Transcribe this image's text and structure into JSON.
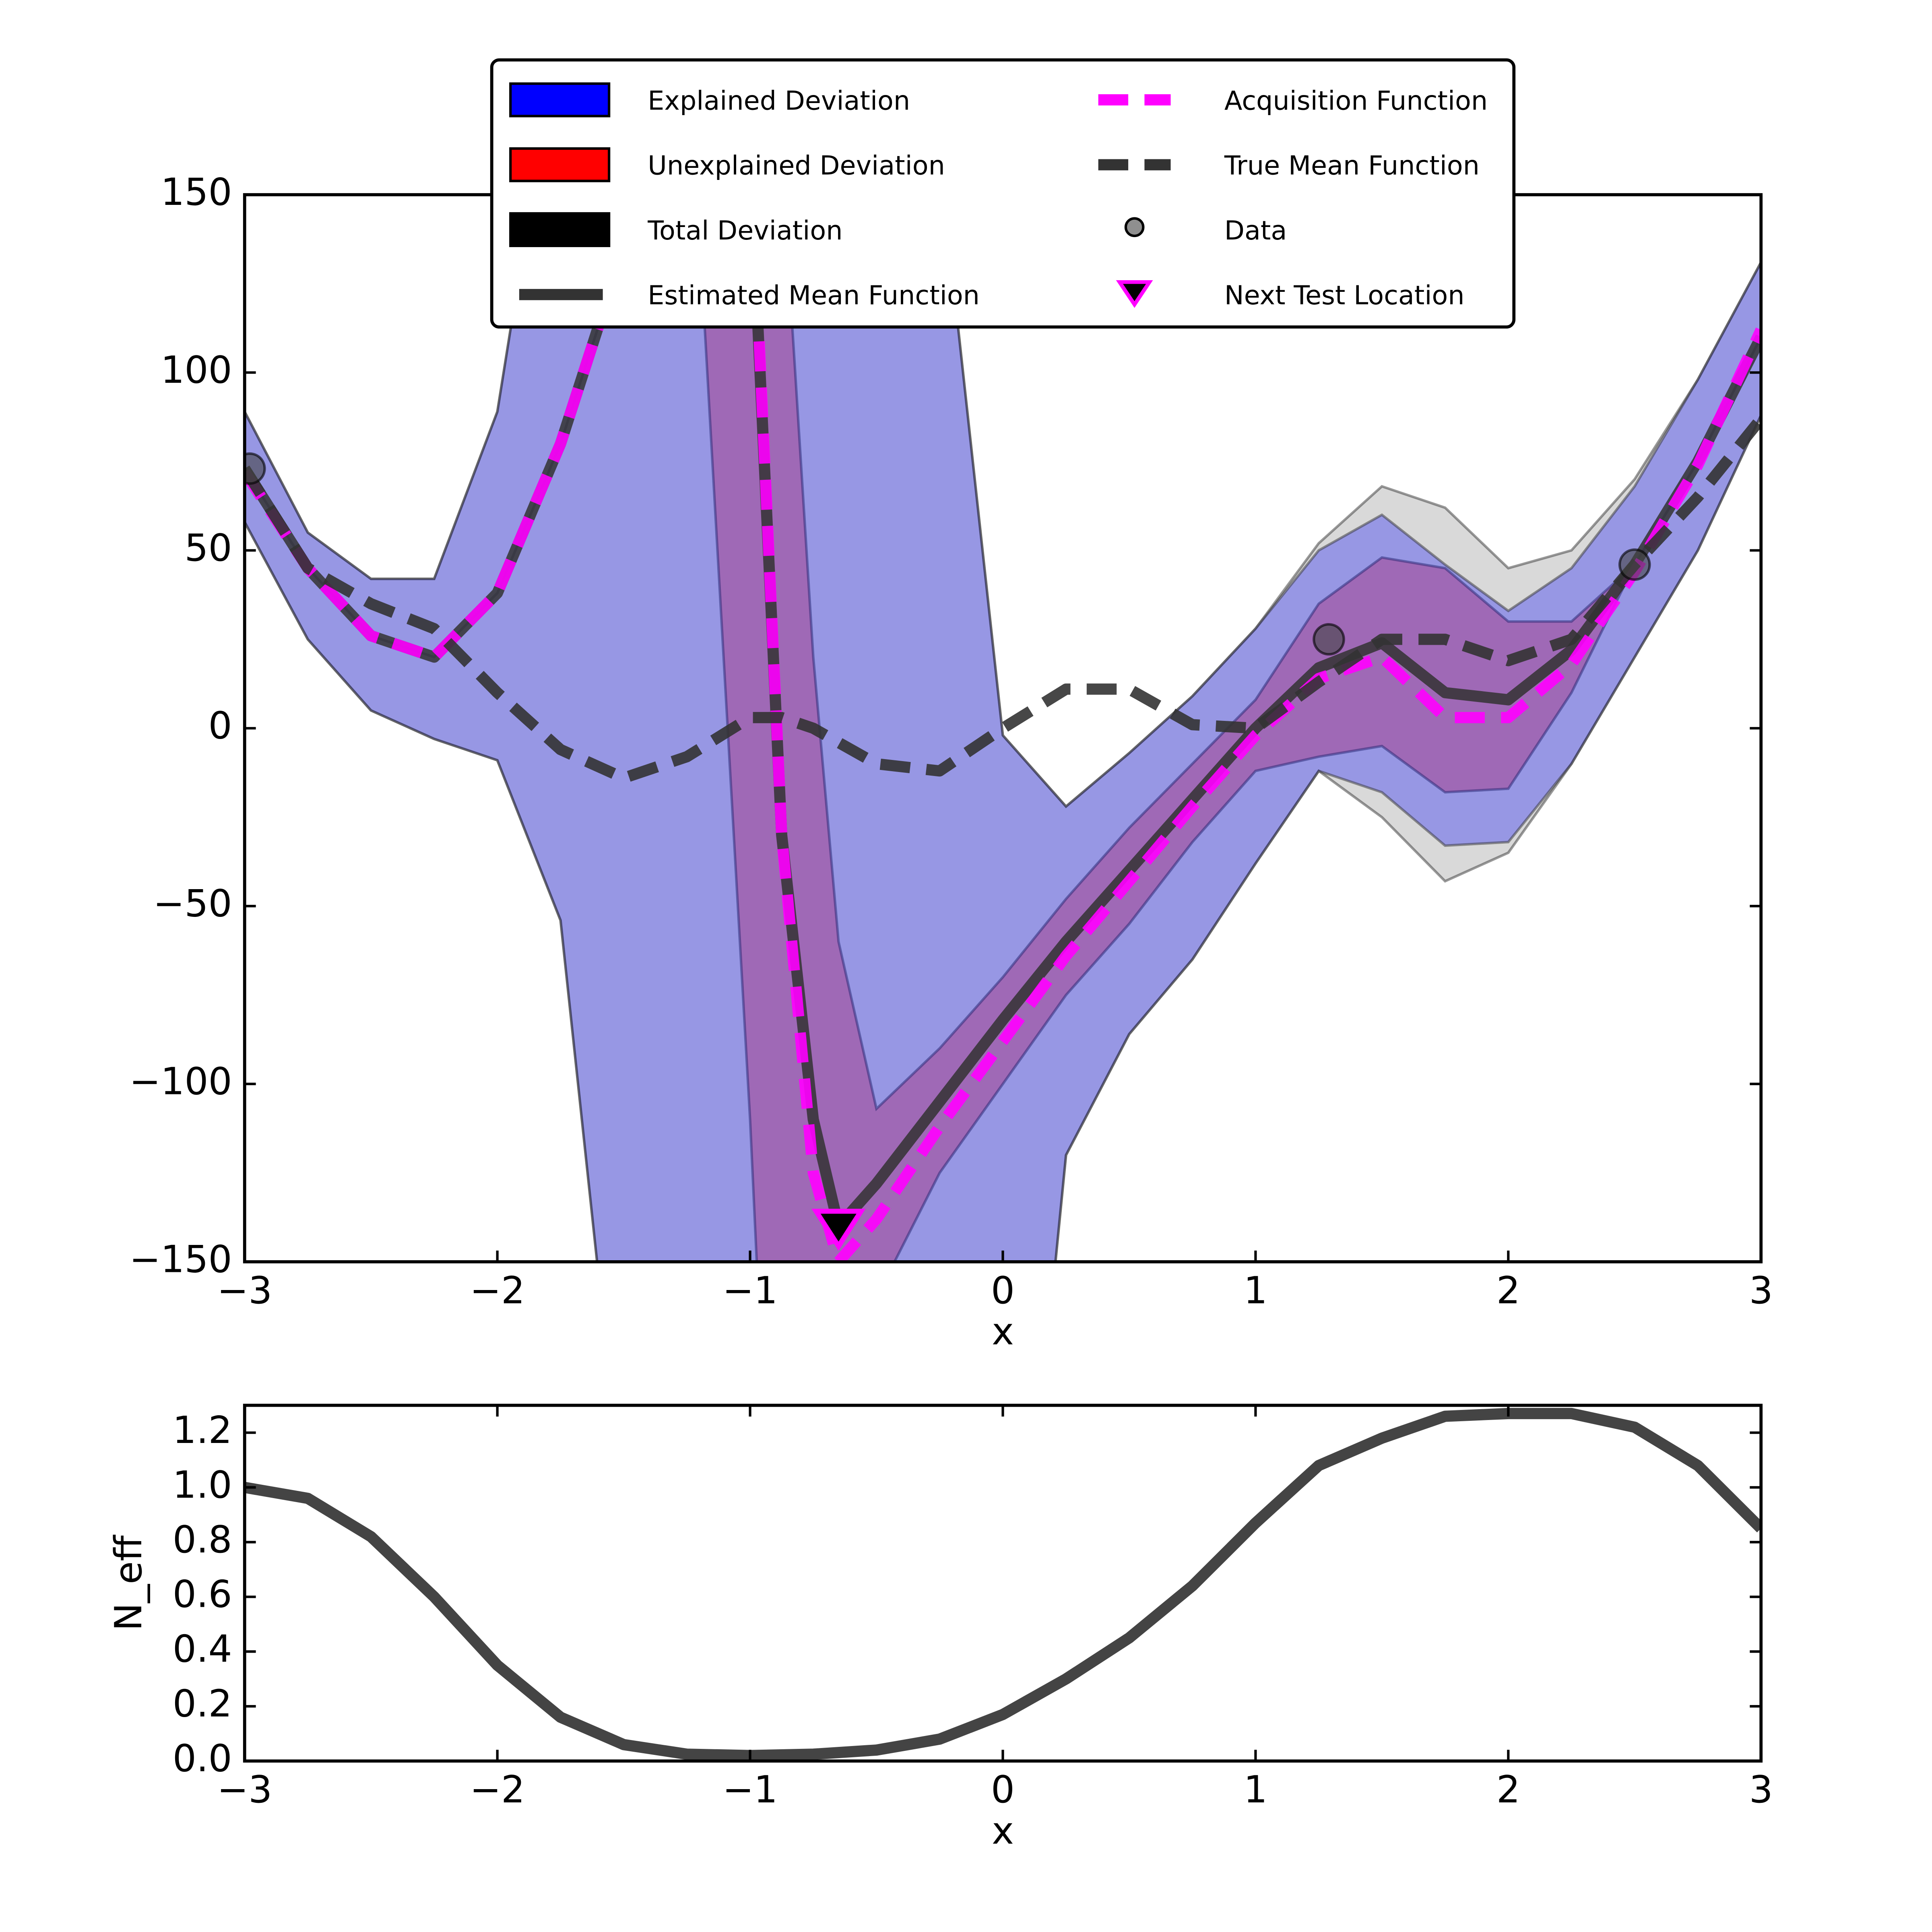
{
  "chart_data": [
    {
      "type": "line",
      "xlabel": "x",
      "x": [
        -3,
        -2.75,
        -2.5,
        -2.25,
        -2,
        -1.75,
        -1.5,
        -1.25,
        -1,
        -0.875,
        -0.75,
        -0.65,
        -0.5,
        -0.25,
        0,
        0.25,
        0.5,
        0.75,
        1,
        1.25,
        1.5,
        1.75,
        2,
        2.25,
        2.5,
        2.75,
        3
      ],
      "xlim": [
        -3,
        3
      ],
      "xticks": [
        {
          "value": -3,
          "label": "−3"
        },
        {
          "value": -2,
          "label": "−2"
        },
        {
          "value": -1,
          "label": "−1"
        },
        0,
        1,
        2,
        3
      ],
      "ylim": [
        -150,
        150
      ],
      "yticks": [
        {
          "value": -150,
          "label": "−150"
        },
        {
          "value": -100,
          "label": "−100"
        },
        {
          "value": -50,
          "label": "−50"
        },
        0,
        50,
        100,
        150
      ],
      "legend": "upper center",
      "bands": [
        {
          "name": "Explained Deviation",
          "color": "blue",
          "alpha": 0.3,
          "upper": [
            89,
            55,
            42,
            42,
            89,
            200,
            260,
            300,
            300,
            300,
            300,
            300,
            300,
            160,
            -2,
            -22,
            -7,
            9,
            28,
            50,
            60,
            46,
            33,
            45,
            68,
            98,
            131
          ],
          "lower": [
            58,
            25,
            5,
            -3,
            -9,
            -54,
            -220,
            -300,
            -300,
            -300,
            -300,
            -300,
            -300,
            -300,
            -300,
            -120,
            -86,
            -65,
            -38,
            -12,
            -18,
            -33,
            -32,
            -10,
            20,
            50,
            88
          ]
        },
        {
          "name": "Unexplained Deviation",
          "color": "red",
          "alpha": 0.3,
          "upper": [
            73,
            45,
            26,
            20,
            38,
            80,
            135,
            300,
            300,
            160,
            20,
            -60,
            -107,
            -90,
            -70,
            -48,
            -28,
            -10,
            8,
            35,
            48,
            45,
            30,
            30,
            46,
            75,
            110
          ],
          "lower": [
            73,
            45,
            26,
            20,
            38,
            80,
            135,
            200,
            -110,
            -300,
            -300,
            -300,
            -160,
            -125,
            -100,
            -75,
            -55,
            -32,
            -12,
            -8,
            -5,
            -18,
            -17,
            10,
            46,
            75,
            110
          ]
        },
        {
          "name": "Total Deviation",
          "color": "black",
          "alpha": 0.15,
          "upper": [
            89,
            55,
            42,
            42,
            89,
            200,
            260,
            300,
            300,
            300,
            300,
            300,
            300,
            160,
            -2,
            -22,
            -7,
            9,
            28,
            52,
            68,
            62,
            45,
            50,
            70,
            98,
            131
          ],
          "lower": [
            58,
            25,
            5,
            -3,
            -9,
            -54,
            -220,
            -300,
            -300,
            -300,
            -300,
            -300,
            -300,
            -300,
            -300,
            -120,
            -86,
            -65,
            -38,
            -12,
            -25,
            -43,
            -35,
            -10,
            20,
            50,
            88
          ]
        }
      ],
      "series": [
        {
          "name": "Estimated Mean Function",
          "color": "#333333",
          "dashed": false,
          "values": [
            73,
            45,
            26,
            20,
            38,
            80,
            135,
            190,
            160,
            -30,
            -110,
            -140,
            -128,
            -105,
            -82,
            -60,
            -40,
            -20,
            0,
            17,
            24,
            10,
            8,
            22,
            46,
            75,
            110
          ]
        },
        {
          "name": "Acquisition Function",
          "color": "magenta",
          "dashed": true,
          "values": [
            72,
            45,
            26,
            20,
            38,
            80,
            135,
            190,
            165,
            -30,
            -125,
            -150,
            -138,
            -112,
            -88,
            -64,
            -43,
            -22,
            -2,
            14,
            20,
            3,
            3,
            18,
            44,
            74,
            112
          ]
        },
        {
          "name": "True Mean Function",
          "color": "#333333",
          "dashed": true,
          "values": [
            73,
            45,
            35,
            28,
            10,
            -6,
            -14,
            -8,
            3,
            3,
            0,
            -4,
            -10,
            -12,
            0,
            11,
            11,
            1,
            0,
            13,
            25,
            25,
            19,
            25,
            46,
            65,
            87
          ]
        }
      ],
      "points": {
        "name": "Data",
        "color": "#444444",
        "x": [
          -2.98,
          1.29,
          2.5
        ],
        "values": [
          73,
          25,
          46
        ]
      },
      "marker": {
        "name": "Next Test Location",
        "color": "black",
        "edgecolor": "magenta",
        "x": -0.65,
        "value": -140
      }
    },
    {
      "type": "line",
      "xlabel": "x",
      "ylabel": "N_eff",
      "color": "#444444",
      "x": [
        -3,
        -2.75,
        -2.5,
        -2.25,
        -2,
        -1.75,
        -1.5,
        -1.25,
        -1,
        -0.75,
        -0.5,
        -0.25,
        0,
        0.25,
        0.5,
        0.75,
        1,
        1.25,
        1.5,
        1.75,
        2,
        2.25,
        2.5,
        2.75,
        3
      ],
      "values": [
        1.0,
        0.96,
        0.82,
        0.6,
        0.35,
        0.16,
        0.06,
        0.025,
        0.02,
        0.025,
        0.04,
        0.08,
        0.17,
        0.3,
        0.45,
        0.64,
        0.87,
        1.08,
        1.18,
        1.26,
        1.27,
        1.27,
        1.22,
        1.08,
        0.85
      ],
      "xlim": [
        -3,
        3
      ],
      "xticks": [
        {
          "value": -3,
          "label": "−3"
        },
        {
          "value": -2,
          "label": "−2"
        },
        {
          "value": -1,
          "label": "−1"
        },
        0,
        1,
        2,
        3
      ],
      "ylim": [
        0,
        1.3
      ],
      "yticks": [
        {
          "value": 0,
          "label": "0.0"
        },
        0.2,
        0.4,
        0.6,
        0.8,
        {
          "value": 1,
          "label": "1.0"
        },
        1.2
      ]
    }
  ]
}
